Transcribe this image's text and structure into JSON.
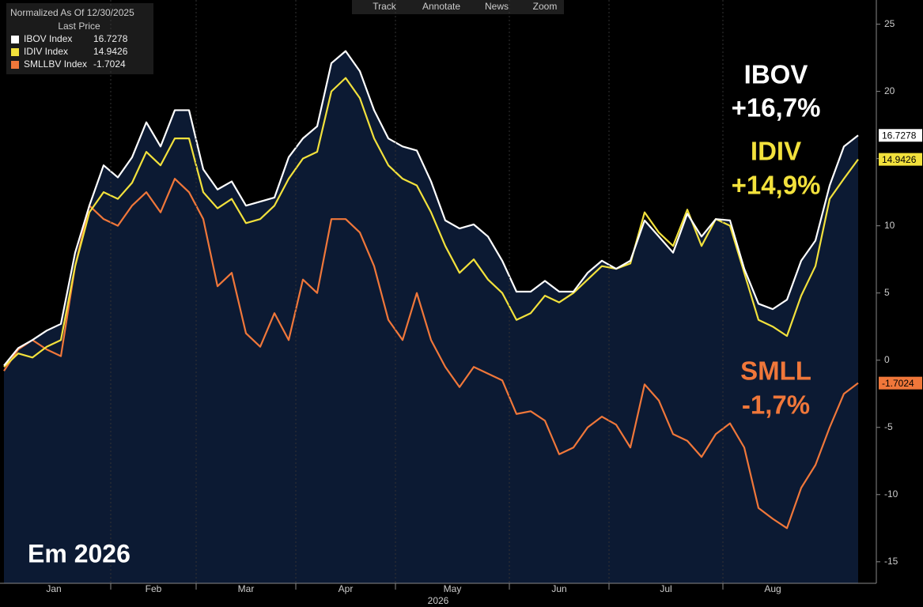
{
  "chart_data": {
    "type": "line",
    "legend_title": "Normalized As Of 12/30/2025",
    "legend_subtitle": "Last Price",
    "toolbar": [
      "Track",
      "Annotate",
      "News",
      "Zoom"
    ],
    "x_label": "2026",
    "categories": [
      "Jan",
      null,
      null,
      null,
      null,
      null,
      null,
      null,
      "Feb",
      null,
      null,
      null,
      null,
      null,
      "Mar",
      null,
      null,
      null,
      null,
      null,
      null,
      "Apr",
      null,
      null,
      null,
      null,
      null,
      null,
      "May",
      null,
      null,
      null,
      null,
      null,
      null,
      null,
      "Jun",
      null,
      null,
      null,
      null,
      null,
      null,
      "Jul",
      null,
      null,
      null,
      null,
      null,
      null,
      null,
      "Aug",
      null,
      null,
      null,
      null,
      null,
      null,
      null,
      null,
      null
    ],
    "ylim": [
      -16.6,
      26.8
    ],
    "yticks": [
      25,
      20,
      15,
      10,
      5,
      0,
      -5,
      -10,
      -15
    ],
    "grid": false,
    "area_series": 0,
    "area_color": "#0c1a33",
    "series": [
      {
        "name": "IBOV Index",
        "color": "#ffffff",
        "values": [
          -0.4,
          0.9,
          1.5,
          2.2,
          2.7,
          8.0,
          11.5,
          14.5,
          13.6,
          15.1,
          17.7,
          15.9,
          18.6,
          18.6,
          14.2,
          12.7,
          13.3,
          11.5,
          11.8,
          12.1,
          15.1,
          16.5,
          17.4,
          22.1,
          23.0,
          21.5,
          18.6,
          16.5,
          15.9,
          15.6,
          13.3,
          10.4,
          9.8,
          10.1,
          9.2,
          7.4,
          5.1,
          5.1,
          5.9,
          5.1,
          5.1,
          6.5,
          7.4,
          6.8,
          7.4,
          10.4,
          9.2,
          8.0,
          10.9,
          9.2,
          10.5,
          10.4,
          6.8,
          4.2,
          3.8,
          4.5,
          7.4,
          8.9,
          13.0,
          15.9,
          16.7278
        ]
      },
      {
        "name": "IDIV Index",
        "color": "#f2e13c",
        "values": [
          -0.5,
          0.5,
          0.2,
          1.0,
          1.5,
          7.0,
          11.0,
          12.5,
          12.0,
          13.2,
          15.5,
          14.5,
          16.5,
          16.5,
          12.5,
          11.3,
          12.0,
          10.2,
          10.5,
          11.5,
          13.5,
          15.0,
          15.5,
          20.0,
          21.0,
          19.5,
          16.5,
          14.5,
          13.5,
          13.0,
          11.0,
          8.5,
          6.5,
          7.5,
          6.0,
          5.0,
          3.0,
          3.5,
          4.8,
          4.3,
          5.0,
          6.0,
          7.0,
          6.8,
          7.2,
          11.0,
          9.5,
          8.5,
          11.2,
          8.5,
          10.5,
          10.0,
          6.5,
          3.0,
          2.5,
          1.8,
          4.8,
          7.0,
          12.0,
          13.5,
          14.9426
        ]
      },
      {
        "name": "SMLLBV Index",
        "color": "#f0773a",
        "values": [
          -0.8,
          0.8,
          1.5,
          0.8,
          0.3,
          7.0,
          11.5,
          10.5,
          10.0,
          11.5,
          12.5,
          11.0,
          13.5,
          12.5,
          10.5,
          5.5,
          6.5,
          2.0,
          1.0,
          3.5,
          1.5,
          6.0,
          5.0,
          10.5,
          10.5,
          9.5,
          7.0,
          3.0,
          1.5,
          5.0,
          1.5,
          -0.5,
          -2.0,
          -0.5,
          -1.0,
          -1.5,
          -4.0,
          -3.8,
          -4.5,
          -7.0,
          -6.5,
          -5.0,
          -4.2,
          -4.8,
          -6.5,
          -1.8,
          -3.0,
          -5.5,
          -6.0,
          -7.2,
          -5.5,
          -4.7,
          -6.5,
          -11.0,
          -11.8,
          -12.5,
          -9.5,
          -7.8,
          -5.0,
          -2.5,
          -1.7024
        ]
      }
    ],
    "annotations": [
      {
        "text": "IBOV",
        "color": "#ffffff"
      },
      {
        "text": "+16,7%",
        "color": "#ffffff"
      },
      {
        "text": "IDIV",
        "color": "#f2e13c"
      },
      {
        "text": "+14,9%",
        "color": "#f2e13c"
      },
      {
        "text": "SMLL",
        "color": "#f0773a"
      },
      {
        "text": "-1,7%",
        "color": "#f0773a"
      },
      {
        "text": "Em 2026",
        "color": "#ffffff"
      }
    ]
  }
}
